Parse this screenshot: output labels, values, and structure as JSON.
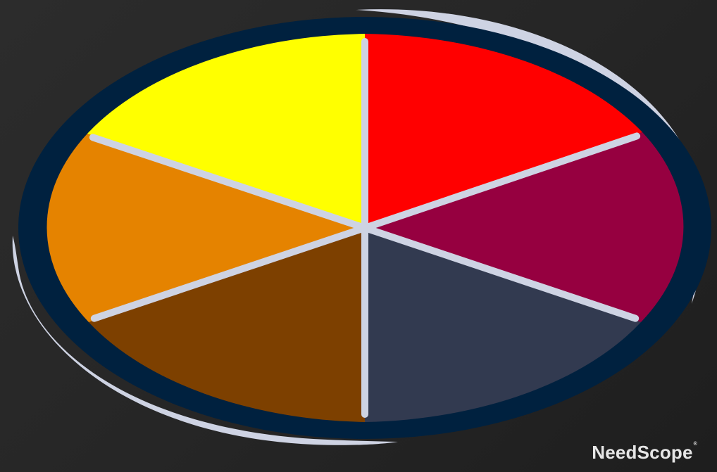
{
  "diagram": {
    "segments": [
      {
        "id": "red",
        "color": "#FF0000"
      },
      {
        "id": "crimson",
        "color": "#960040"
      },
      {
        "id": "slate",
        "color": "#323A50"
      },
      {
        "id": "brown",
        "color": "#7D4000"
      },
      {
        "id": "orange",
        "color": "#E58300"
      },
      {
        "id": "yellow",
        "color": "#FFFF00"
      }
    ],
    "rim_color": "#00213F",
    "spoke_color": "#CED3E3",
    "swoosh_color": "#CED3E3"
  },
  "logo": {
    "brand_name": "NeedScope",
    "trademark": "®"
  }
}
